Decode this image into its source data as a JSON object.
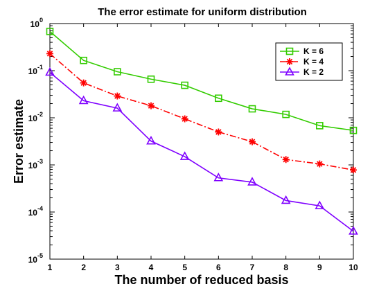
{
  "chart_data": {
    "type": "line",
    "title": "The error estimate for uniform distribution",
    "xlabel": "The number of reduced basis",
    "ylabel": "Error estimate",
    "x": [
      1,
      2,
      3,
      4,
      5,
      6,
      7,
      8,
      9,
      10
    ],
    "xlim": [
      1,
      10
    ],
    "ylim": [
      1e-05,
      1
    ],
    "yscale": "log",
    "x_ticks": [
      "1",
      "2",
      "3",
      "4",
      "5",
      "6",
      "7",
      "8",
      "9",
      "10"
    ],
    "y_ticks": [
      {
        "base": "10",
        "exp": "0",
        "value": 1
      },
      {
        "base": "10",
        "exp": "-1",
        "value": 0.1
      },
      {
        "base": "10",
        "exp": "-2",
        "value": 0.01
      },
      {
        "base": "10",
        "exp": "-3",
        "value": 0.001
      },
      {
        "base": "10",
        "exp": "-4",
        "value": 0.0001
      },
      {
        "base": "10",
        "exp": "-5",
        "value": 1e-05
      }
    ],
    "grid": false,
    "legend_position": "top-right",
    "series": [
      {
        "name": "K = 6",
        "color": "#33cc00",
        "line_style": "solid",
        "marker": "square",
        "values": [
          0.68,
          0.165,
          0.095,
          0.066,
          0.049,
          0.026,
          0.0155,
          0.0118,
          0.0068,
          0.0054
        ]
      },
      {
        "name": "K = 4",
        "color": "#ff0000",
        "line_style": "dashdot",
        "marker": "asterisk",
        "values": [
          0.23,
          0.055,
          0.029,
          0.018,
          0.0095,
          0.005,
          0.0031,
          0.0013,
          0.00105,
          0.00078
        ]
      },
      {
        "name": "K = 2",
        "color": "#7f00ff",
        "line_style": "solid",
        "marker": "triangle",
        "values": [
          0.092,
          0.023,
          0.016,
          0.0032,
          0.0015,
          0.00053,
          0.00043,
          0.000175,
          0.000135,
          3.9e-05
        ]
      }
    ]
  }
}
